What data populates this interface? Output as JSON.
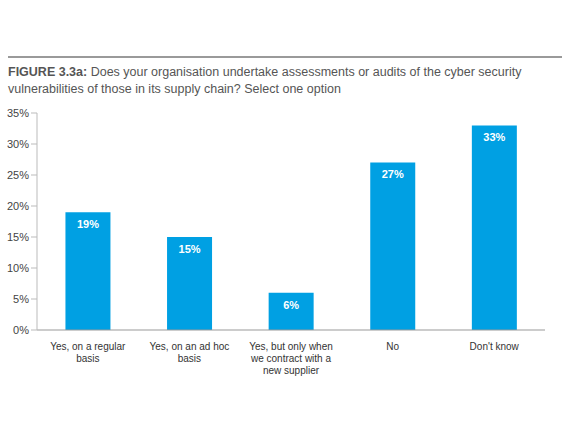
{
  "chart_data": {
    "type": "bar",
    "title": "FIGURE 3.3a: Does your organisation undertake assessments or audits of the cyber security vulnerabilities of those in its supply chain? Select one option",
    "categories": [
      "Yes, on a regular basis",
      "Yes, on an ad hoc basis",
      "Yes, but only when we contract with a new supplier",
      "No",
      "Don't know"
    ],
    "values": [
      19,
      15,
      6,
      27,
      33
    ],
    "value_labels": [
      "19%",
      "15%",
      "6%",
      "27%",
      "33%"
    ],
    "color": "#00a0e3",
    "ylim": [
      0,
      35
    ],
    "yticks": [
      {
        "value": 0,
        "label": "0%"
      },
      {
        "value": 5,
        "label": "5%"
      },
      {
        "value": 10,
        "label": "10%"
      },
      {
        "value": 15,
        "label": "15%"
      },
      {
        "value": 20,
        "label": "20%"
      },
      {
        "value": 25,
        "label": "25%"
      },
      {
        "value": 30,
        "label": "30%"
      },
      {
        "value": 35,
        "label": "35%"
      }
    ],
    "grid": false,
    "data_labels": true
  }
}
